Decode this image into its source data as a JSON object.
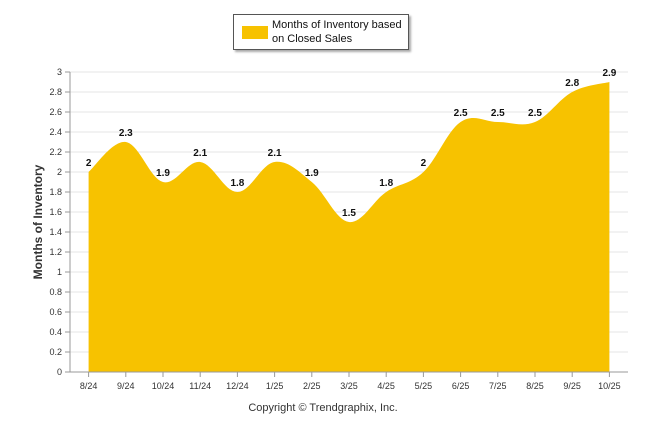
{
  "chart_data": {
    "type": "area",
    "title": "",
    "xlabel": "",
    "ylabel": "Months of Inventory",
    "categories": [
      "8/24",
      "9/24",
      "10/24",
      "11/24",
      "12/24",
      "1/25",
      "2/25",
      "3/25",
      "4/25",
      "5/25",
      "6/25",
      "7/25",
      "8/25",
      "9/25",
      "10/25"
    ],
    "series": [
      {
        "name": "Months of Inventory based on Closed Sales",
        "values": [
          2,
          2.3,
          1.9,
          2.1,
          1.8,
          2.1,
          1.9,
          1.5,
          1.8,
          2,
          2.5,
          2.5,
          2.5,
          2.8,
          2.9
        ],
        "labels": [
          "2",
          "2.3",
          "1.9",
          "2.1",
          "1.8",
          "2.1",
          "1.9",
          "1.5",
          "1.8",
          "2",
          "2.5",
          "2.5",
          "2.5",
          "2.8",
          "2.9"
        ]
      }
    ],
    "ylim": [
      0,
      3
    ],
    "yticks": [
      "0",
      "0.2",
      "0.4",
      "0.6",
      "0.8",
      "1",
      "1.2",
      "1.4",
      "1.6",
      "1.8",
      "2",
      "2.2",
      "2.4",
      "2.6",
      "2.8",
      "3"
    ],
    "grid": true,
    "legend_position": "top-center"
  },
  "colors": {
    "area": "#f7c200",
    "grid": "#e6e6e6",
    "axis": "#999999"
  },
  "legend": {
    "label": "Months of Inventory based on Closed Sales"
  },
  "footer": {
    "copyright": "Copyright © Trendgraphix, Inc."
  }
}
